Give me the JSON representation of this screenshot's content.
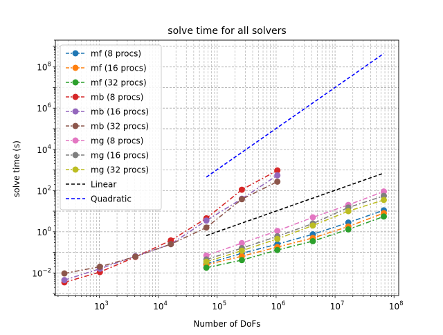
{
  "chart_data": {
    "type": "line",
    "title": "solve time for all solvers",
    "xlabel": "Number of DoFs",
    "ylabel": "solve time (s)",
    "xscale": "log",
    "yscale": "log",
    "xlim": [
      180,
      120000000
    ],
    "ylim": [
      0.0008,
      2000000000
    ],
    "xticks": [
      {
        "value": 1000,
        "base": "10",
        "exp": "3"
      },
      {
        "value": 10000,
        "base": "10",
        "exp": "4"
      },
      {
        "value": 100000,
        "base": "10",
        "exp": "5"
      },
      {
        "value": 1000000,
        "base": "10",
        "exp": "6"
      },
      {
        "value": 10000000,
        "base": "10",
        "exp": "7"
      },
      {
        "value": 100000000,
        "base": "10",
        "exp": "8"
      }
    ],
    "yticks": [
      {
        "value": 0.01,
        "base": "10",
        "exp": "−2"
      },
      {
        "value": 1,
        "base": "10",
        "exp": "0"
      },
      {
        "value": 100,
        "base": "10",
        "exp": "2"
      },
      {
        "value": 10000,
        "base": "10",
        "exp": "4"
      },
      {
        "value": 1000000,
        "base": "10",
        "exp": "6"
      },
      {
        "value": 100000000,
        "base": "10",
        "exp": "8"
      }
    ],
    "grid": "major and minor, dashed",
    "legend_position": "top-left",
    "series": [
      {
        "name": "mf (8 procs)",
        "color": "#1f77b4",
        "style": "dashdot",
        "marker": true,
        "x": [
          65536,
          262144,
          1048576,
          4194304,
          16777216,
          67108864
        ],
        "y": [
          0.028,
          0.09,
          0.25,
          0.75,
          2.8,
          11
        ]
      },
      {
        "name": "mf (16 procs)",
        "color": "#ff7f0e",
        "style": "dashdot",
        "marker": true,
        "x": [
          65536,
          262144,
          1048576,
          4194304,
          16777216,
          67108864
        ],
        "y": [
          0.025,
          0.065,
          0.18,
          0.5,
          1.8,
          8
        ]
      },
      {
        "name": "mf (32 procs)",
        "color": "#2ca02c",
        "style": "dashdot",
        "marker": true,
        "x": [
          65536,
          262144,
          1048576,
          4194304,
          16777216,
          67108864
        ],
        "y": [
          0.018,
          0.042,
          0.13,
          0.35,
          1.3,
          5.5
        ]
      },
      {
        "name": "mb (8 procs)",
        "color": "#d62728",
        "style": "dashdot",
        "marker": true,
        "x": [
          256,
          1024,
          4096,
          16384,
          65536,
          262144,
          1048576
        ],
        "y": [
          0.0035,
          0.011,
          0.06,
          0.38,
          4.5,
          110,
          950
        ]
      },
      {
        "name": "mb (16 procs)",
        "color": "#9467bd",
        "style": "dashdot",
        "marker": true,
        "x": [
          256,
          1024,
          4096,
          16384,
          65536,
          262144,
          1048576
        ],
        "y": [
          0.0045,
          0.016,
          0.065,
          0.25,
          3.5,
          40,
          550
        ]
      },
      {
        "name": "mb (32 procs)",
        "color": "#8c564b",
        "style": "dashdot",
        "marker": true,
        "x": [
          256,
          1024,
          4096,
          16384,
          65536,
          262144,
          1048576
        ],
        "y": [
          0.0095,
          0.02,
          0.062,
          0.25,
          1.6,
          38,
          270
        ]
      },
      {
        "name": "mg (8 procs)",
        "color": "#e377c2",
        "style": "dashdot",
        "marker": true,
        "x": [
          65536,
          262144,
          1048576,
          4194304,
          16777216,
          67108864
        ],
        "y": [
          0.07,
          0.28,
          1.1,
          5,
          20,
          90
        ]
      },
      {
        "name": "mg (16 procs)",
        "color": "#7f7f7f",
        "style": "dashdot",
        "marker": true,
        "x": [
          65536,
          262144,
          1048576,
          4194304,
          16777216,
          67108864
        ],
        "y": [
          0.045,
          0.16,
          0.6,
          2.5,
          15,
          55
        ]
      },
      {
        "name": "mg (32 procs)",
        "color": "#bcbd22",
        "style": "dashdot",
        "marker": true,
        "x": [
          65536,
          262144,
          1048576,
          4194304,
          16777216,
          67108864
        ],
        "y": [
          0.035,
          0.12,
          0.45,
          2,
          10,
          35
        ]
      },
      {
        "name": "Linear",
        "color": "#000000",
        "style": "dashed",
        "marker": false,
        "x": [
          65536,
          67108864
        ],
        "y": [
          0.65,
          700
        ]
      },
      {
        "name": "Quadratic",
        "color": "#0000ff",
        "style": "dashed",
        "marker": false,
        "x": [
          65536,
          67108864
        ],
        "y": [
          450,
          450000000
        ]
      }
    ]
  }
}
